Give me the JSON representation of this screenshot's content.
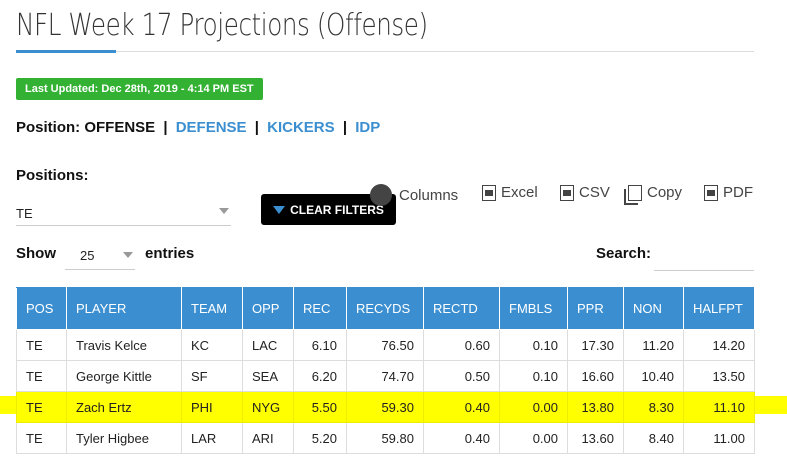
{
  "page": {
    "title": "NFL Week 17 Projections (Offense)",
    "last_updated": "Last Updated: Dec 28th, 2019 - 4:14 PM EST"
  },
  "position_nav": {
    "label": "Position: OFFENSE",
    "separator": "|",
    "links": [
      "DEFENSE",
      "KICKERS",
      "IDP"
    ]
  },
  "filters": {
    "positions_label": "Positions:",
    "positions_value": "TE",
    "clear_label": "CLEAR FILTERS"
  },
  "tools": {
    "columns": "Columns",
    "excel": "Excel",
    "csv": "CSV",
    "copy": "Copy",
    "pdf": "PDF"
  },
  "table_controls": {
    "show_label": "Show",
    "entries_value": "25",
    "entries_label": "entries",
    "search_label": "Search:"
  },
  "table": {
    "headers": [
      "POS",
      "PLAYER",
      "TEAM",
      "OPP",
      "REC",
      "RECYDS",
      "RECTD",
      "FMBLS",
      "PPR",
      "NON",
      "HALFPT"
    ],
    "rows": [
      [
        "TE",
        "Travis Kelce",
        "KC",
        "LAC",
        "6.10",
        "76.50",
        "0.60",
        "0.10",
        "17.30",
        "11.20",
        "14.20"
      ],
      [
        "TE",
        "George Kittle",
        "SF",
        "SEA",
        "6.20",
        "74.70",
        "0.50",
        "0.10",
        "16.60",
        "10.40",
        "13.50"
      ],
      [
        "TE",
        "Zach Ertz",
        "PHI",
        "NYG",
        "5.50",
        "59.30",
        "0.40",
        "0.00",
        "13.80",
        "8.30",
        "11.10"
      ],
      [
        "TE",
        "Tyler Higbee",
        "LAR",
        "ARI",
        "5.20",
        "59.80",
        "0.40",
        "0.00",
        "13.60",
        "8.40",
        "11.00"
      ]
    ],
    "highlighted_row": 2
  },
  "colors": {
    "accent": "#3b8fd0",
    "badge": "#33b133",
    "highlight": "#ffff00"
  }
}
